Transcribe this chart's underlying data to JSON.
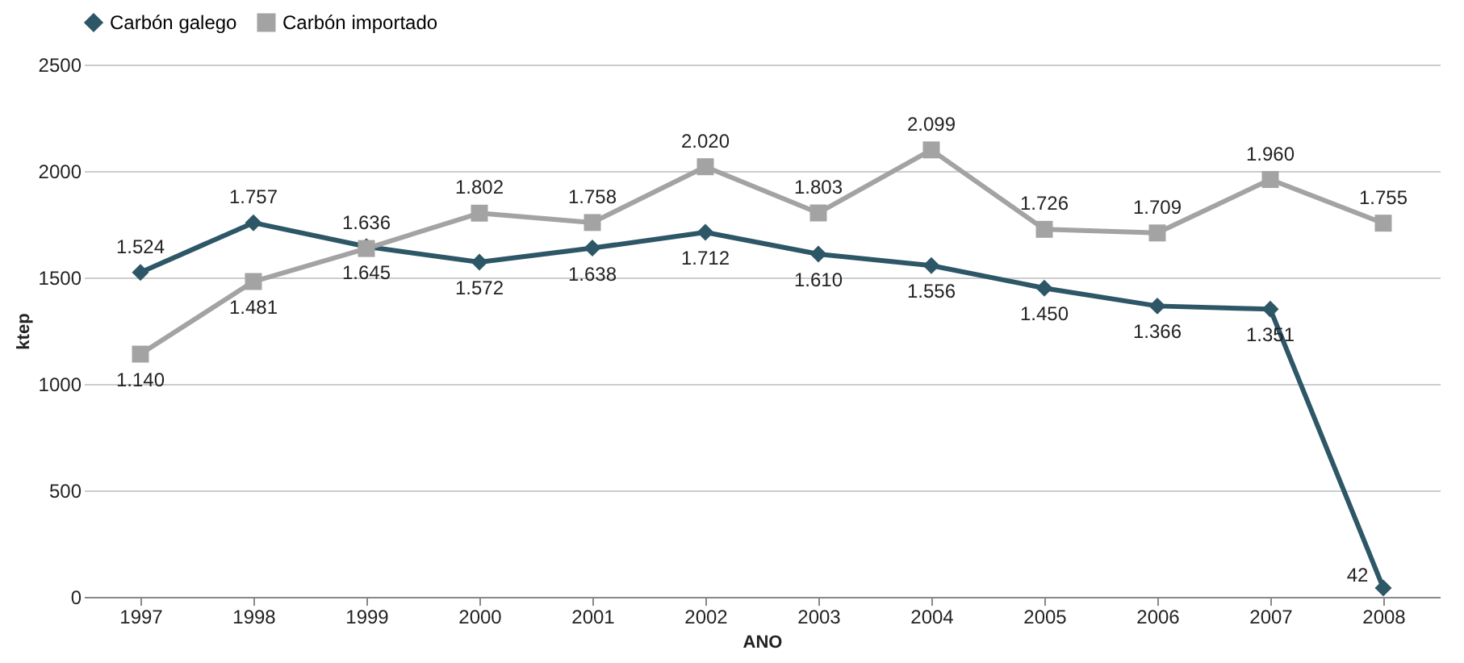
{
  "chart_data": {
    "type": "line",
    "xlabel": "ANO",
    "ylabel": "ktep",
    "categories": [
      "1997",
      "1998",
      "1999",
      "2000",
      "2001",
      "2002",
      "2003",
      "2004",
      "2005",
      "2006",
      "2007",
      "2008"
    ],
    "series": [
      {
        "name": "Carbón galego",
        "color": "#2d5666",
        "marker": "diamond",
        "values": [
          1524,
          1757,
          1645,
          1572,
          1638,
          1712,
          1610,
          1556,
          1450,
          1366,
          1351,
          42
        ],
        "value_labels": [
          "1.524",
          "1.757",
          "1.645",
          "1.572",
          "1.638",
          "1.712",
          "1.610",
          "1.556",
          "1.450",
          "1.366",
          "1.351",
          "42"
        ]
      },
      {
        "name": "Carbón importado",
        "color": "#a3a3a3",
        "marker": "square",
        "values": [
          1140,
          1481,
          1636,
          1802,
          1758,
          2020,
          1803,
          2099,
          1726,
          1709,
          1960,
          1755
        ],
        "value_labels": [
          "1.140",
          "1.481",
          "1.636",
          "1.802",
          "1.758",
          "2.020",
          "1.803",
          "2.099",
          "1.726",
          "1.709",
          "1.960",
          "1.755"
        ]
      }
    ],
    "ylim": [
      0,
      2500
    ],
    "yticks": [
      0,
      500,
      1000,
      1500,
      2000,
      2500
    ],
    "grid": "y",
    "legend": "top",
    "line_style": "solid"
  }
}
